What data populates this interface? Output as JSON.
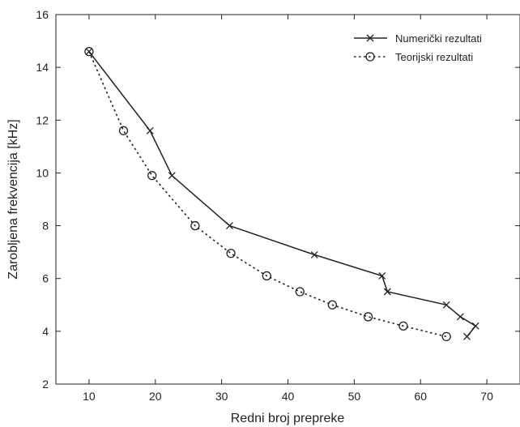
{
  "chart_data": {
    "type": "line",
    "xlabel": "Redni broj prepreke",
    "ylabel": "Zarobljena frekvencija [kHz]",
    "xlim": [
      5,
      75
    ],
    "ylim": [
      2,
      16
    ],
    "xticks": [
      10,
      20,
      30,
      40,
      50,
      60,
      70
    ],
    "yticks": [
      2,
      4,
      6,
      8,
      10,
      12,
      14,
      16
    ],
    "grid": false,
    "legend_position": "top-right",
    "series": [
      {
        "name": "Numerički rezultati",
        "line": "solid",
        "marker": "x",
        "color": "#222222",
        "x": [
          10,
          19.2,
          22.5,
          31.2,
          44,
          54.2,
          55,
          63.9,
          66,
          68.3,
          67
        ],
        "y": [
          14.6,
          11.6,
          9.9,
          8.0,
          6.9,
          6.1,
          5.5,
          5.0,
          4.55,
          4.2,
          3.8
        ]
      },
      {
        "name": "Teorijski rezultati",
        "line": "dotted",
        "marker": "o",
        "color": "#222222",
        "x": [
          10,
          15.2,
          19.5,
          26,
          31.4,
          36.8,
          41.8,
          46.7,
          52.1,
          57.4,
          63.9
        ],
        "y": [
          14.6,
          11.6,
          9.9,
          8.0,
          6.95,
          6.1,
          5.5,
          5.0,
          4.55,
          4.2,
          3.8
        ]
      }
    ]
  }
}
